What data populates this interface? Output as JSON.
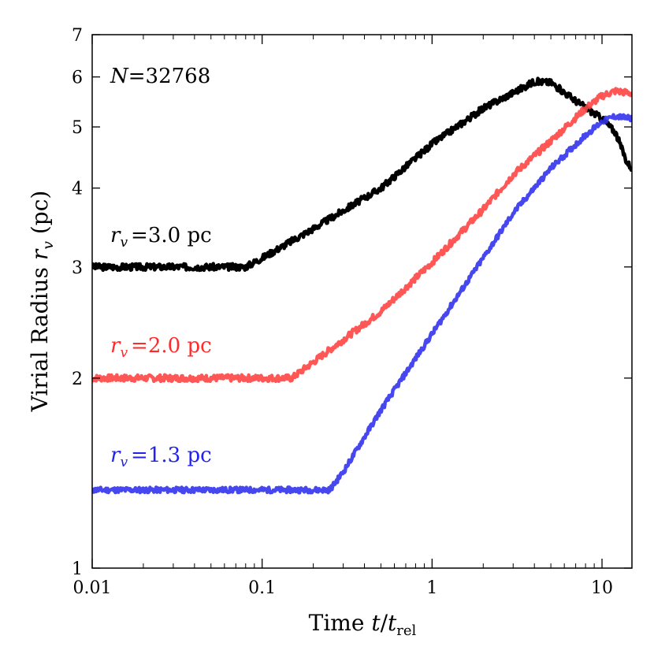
{
  "chart_data": {
    "type": "line",
    "title": "",
    "xlabel": {
      "prefix": "Time ",
      "var": "t",
      "slash": "/",
      "base": "t",
      "sub": "rel"
    },
    "ylabel": {
      "prefix": "Virial Radius ",
      "var": "r",
      "sub": "v",
      "suffix": " (pc)"
    },
    "xscale": "log",
    "yscale": "log",
    "xlim": [
      0.01,
      15
    ],
    "ylim": [
      1,
      7
    ],
    "x_ticks": [
      0.01,
      0.1,
      1,
      10
    ],
    "x_tick_labels": [
      "0.01",
      "0.1",
      "1",
      "10"
    ],
    "y_ticks": [
      1,
      2,
      3,
      4,
      5,
      6,
      7
    ],
    "y_tick_labels": [
      "1",
      "2",
      "3",
      "4",
      "5",
      "6",
      "7"
    ],
    "annotation": {
      "var": "N",
      "text": "=32768",
      "color": "#000000"
    },
    "series": [
      {
        "name": "rv3",
        "label_var": "r",
        "label_sub": "v",
        "label_text": "=3.0 pc",
        "color": "#000000",
        "noise": 0.012,
        "seed": 3,
        "points": [
          [
            0.01,
            3.0
          ],
          [
            0.08,
            3.0
          ],
          [
            0.1,
            3.1
          ],
          [
            0.2,
            3.45
          ],
          [
            0.5,
            4.0
          ],
          [
            1,
            4.7
          ],
          [
            2,
            5.35
          ],
          [
            4,
            5.9
          ],
          [
            5,
            5.88
          ],
          [
            7,
            5.5
          ],
          [
            10,
            5.15
          ],
          [
            12,
            4.9
          ],
          [
            14,
            4.4
          ],
          [
            15,
            4.3
          ]
        ]
      },
      {
        "name": "rv2",
        "label_var": "r",
        "label_sub": "v",
        "label_text": "=2.0 pc",
        "color": "#ff4444",
        "noise": 0.012,
        "seed": 7,
        "points": [
          [
            0.01,
            2.0
          ],
          [
            0.15,
            2.0
          ],
          [
            0.2,
            2.12
          ],
          [
            0.5,
            2.55
          ],
          [
            1,
            3.05
          ],
          [
            2,
            3.7
          ],
          [
            3,
            4.2
          ],
          [
            5,
            4.75
          ],
          [
            8,
            5.35
          ],
          [
            10,
            5.6
          ],
          [
            12,
            5.7
          ],
          [
            15,
            5.65
          ]
        ]
      },
      {
        "name": "rv13",
        "label_var": "r",
        "label_sub": "v",
        "label_text": "=1.3 pc",
        "color": "#3333ee",
        "noise": 0.01,
        "seed": 11,
        "points": [
          [
            0.01,
            1.33
          ],
          [
            0.25,
            1.33
          ],
          [
            0.3,
            1.42
          ],
          [
            0.5,
            1.78
          ],
          [
            1,
            2.35
          ],
          [
            2,
            3.1
          ],
          [
            3,
            3.65
          ],
          [
            5,
            4.3
          ],
          [
            8,
            4.85
          ],
          [
            10,
            5.1
          ],
          [
            12,
            5.2
          ],
          [
            15,
            5.15
          ]
        ]
      }
    ]
  }
}
